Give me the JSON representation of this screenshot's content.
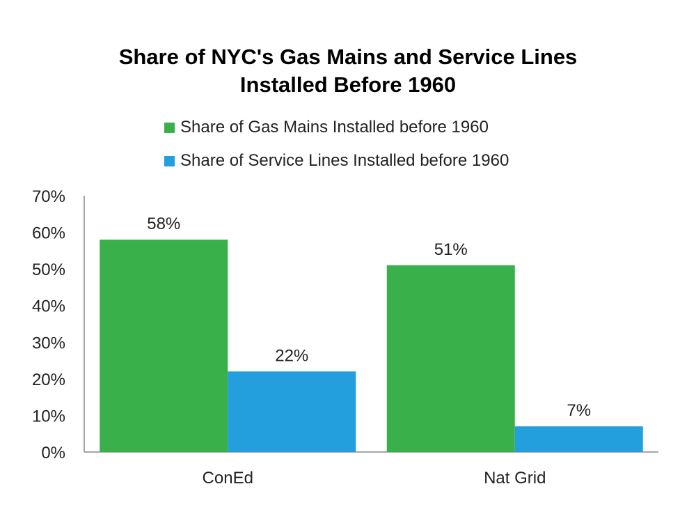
{
  "title_lines": [
    "Share of NYC's Gas Mains and Service Lines",
    "Installed Before 1960"
  ],
  "legend": [
    {
      "label": "Share of Gas Mains Installed before 1960",
      "color": "#39b04a"
    },
    {
      "label": "Share of Service Lines Installed before 1960",
      "color": "#229fdc"
    }
  ],
  "chart_data": {
    "type": "bar",
    "title": "Share of NYC's Gas Mains and Service Lines Installed Before 1960",
    "categories": [
      "ConEd",
      "Nat Grid"
    ],
    "series": [
      {
        "name": "Share of Gas Mains Installed before 1960",
        "values": [
          58,
          51
        ],
        "color": "#39b04a",
        "labels": [
          "58%",
          "51%"
        ]
      },
      {
        "name": "Share of Service Lines Installed before 1960",
        "values": [
          22,
          7
        ],
        "color": "#229fdc",
        "labels": [
          "22%",
          "7%"
        ]
      }
    ],
    "ylim": [
      0,
      70
    ],
    "yticks": [
      0,
      10,
      20,
      30,
      40,
      50,
      60,
      70
    ],
    "ytick_labels": [
      "0%",
      "10%",
      "20%",
      "30%",
      "40%",
      "50%",
      "60%",
      "70%"
    ],
    "xlabel": "",
    "ylabel": "",
    "grid": false,
    "legend_position": "top"
  }
}
